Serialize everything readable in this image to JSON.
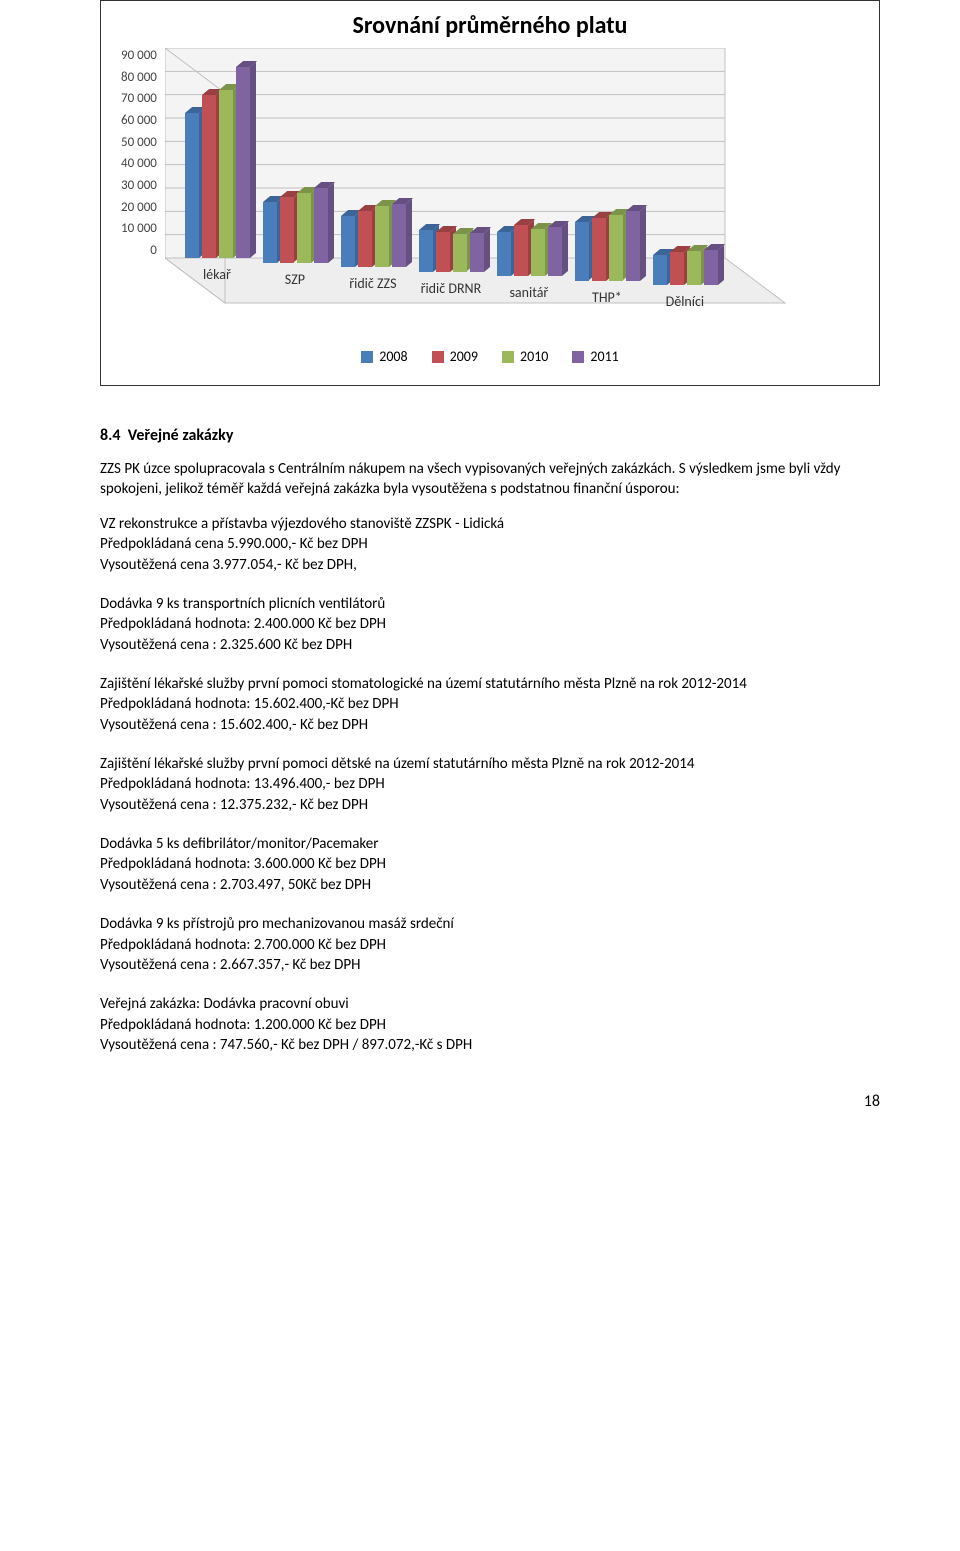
{
  "chart": {
    "type": "bar-3d",
    "title": "Srovnání průměrného platu",
    "title_fontsize": 24,
    "categories": [
      "lékař",
      "SZP",
      "řidič ZZS",
      "řidič DRNR",
      "sanitář",
      "THP*",
      "Dělníci"
    ],
    "series": [
      {
        "label": "2008",
        "color": "#4a7ebb",
        "color_dark": "#3b6599",
        "values": [
          62000,
          26000,
          22000,
          18000,
          19000,
          25000,
          13000
        ]
      },
      {
        "label": "2009",
        "color": "#c05053",
        "color_dark": "#9a4042",
        "values": [
          70000,
          28000,
          24000,
          17000,
          22000,
          27000,
          14000
        ]
      },
      {
        "label": "2010",
        "color": "#9bb95b",
        "color_dark": "#7c9449",
        "values": [
          72000,
          30000,
          26000,
          16000,
          20000,
          28000,
          14500
        ]
      },
      {
        "label": "2011",
        "color": "#8064a2",
        "color_dark": "#665081",
        "values": [
          82000,
          32000,
          27000,
          16500,
          21000,
          30000,
          15000
        ]
      }
    ],
    "ylim": [
      0,
      90000
    ],
    "ytick_step": 10000,
    "yticks": [
      "90 000",
      "80 000",
      "70 000",
      "60 000",
      "50 000",
      "40 000",
      "30 000",
      "20 000",
      "10 000",
      "0"
    ],
    "background_color": "#ffffff",
    "grid_color": "#c0c0c0",
    "axis_label_fontsize": 13,
    "cat_label_fontsize": 14
  },
  "section": {
    "number": "8.4",
    "title": "Veřejné zakázky",
    "intro": "ZZS PK úzce spolupracovala s Centrálním nákupem na všech vypisovaných veřejných zakázkách. S výsledkem jsme byli vždy spokojeni, jelikož téměř každá veřejná zakázka byla vysoutěžena s podstatnou finanční úsporou:"
  },
  "items": [
    {
      "title": "VZ rekonstrukce a přístavba výjezdového stanoviště ZZSPK - Lidická",
      "pre": "Předpokládaná cena 5.990.000,- Kč bez DPH",
      "res": "Vysoutěžená cena  3.977.054,- Kč bez DPH,"
    },
    {
      "title": "Dodávka 9 ks transportních plicních ventilátorů",
      "pre": "Předpokládaná hodnota: 2.400.000 Kč bez DPH",
      "res": "Vysoutěžená cena : 2.325.600 Kč bez DPH"
    },
    {
      "title": "Zajištění lékařské služby první pomoci stomatologické na území statutárního města Plzně na rok 2012-2014",
      "pre": "Předpokládaná hodnota: 15.602.400,-Kč bez DPH",
      "res": "Vysoutěžená cena : 15.602.400,- Kč bez DPH"
    },
    {
      "title": "Zajištění lékařské služby první pomoci dětské na území statutárního města Plzně na rok 2012-2014",
      "pre": "Předpokládaná hodnota: 13.496.400,- bez DPH",
      "res": "Vysoutěžená cena :  12.375.232,- Kč bez DPH"
    },
    {
      "title": "Dodávka 5 ks defibrilátor/monitor/Pacemaker",
      "pre": " Předpokládaná hodnota: 3.600.000 Kč bez DPH",
      "res": "Vysoutěžená cena : 2.703.497, 50Kč bez DPH"
    },
    {
      "title": "Dodávka 9 ks přístrojů pro mechanizovanou masáž srdeční",
      "pre": "Předpokládaná hodnota: 2.700.000 Kč bez DPH",
      "res": "Vysoutěžená cena : 2.667.357,- Kč bez DPH"
    },
    {
      "title": "Veřejná zakázka: Dodávka pracovní obuvi",
      "pre": "Předpokládaná hodnota: 1.200.000 Kč bez DPH",
      "res": "Vysoutěžená cena : 747.560,- Kč bez DPH / 897.072,-Kč s DPH"
    }
  ],
  "page_number": "18"
}
